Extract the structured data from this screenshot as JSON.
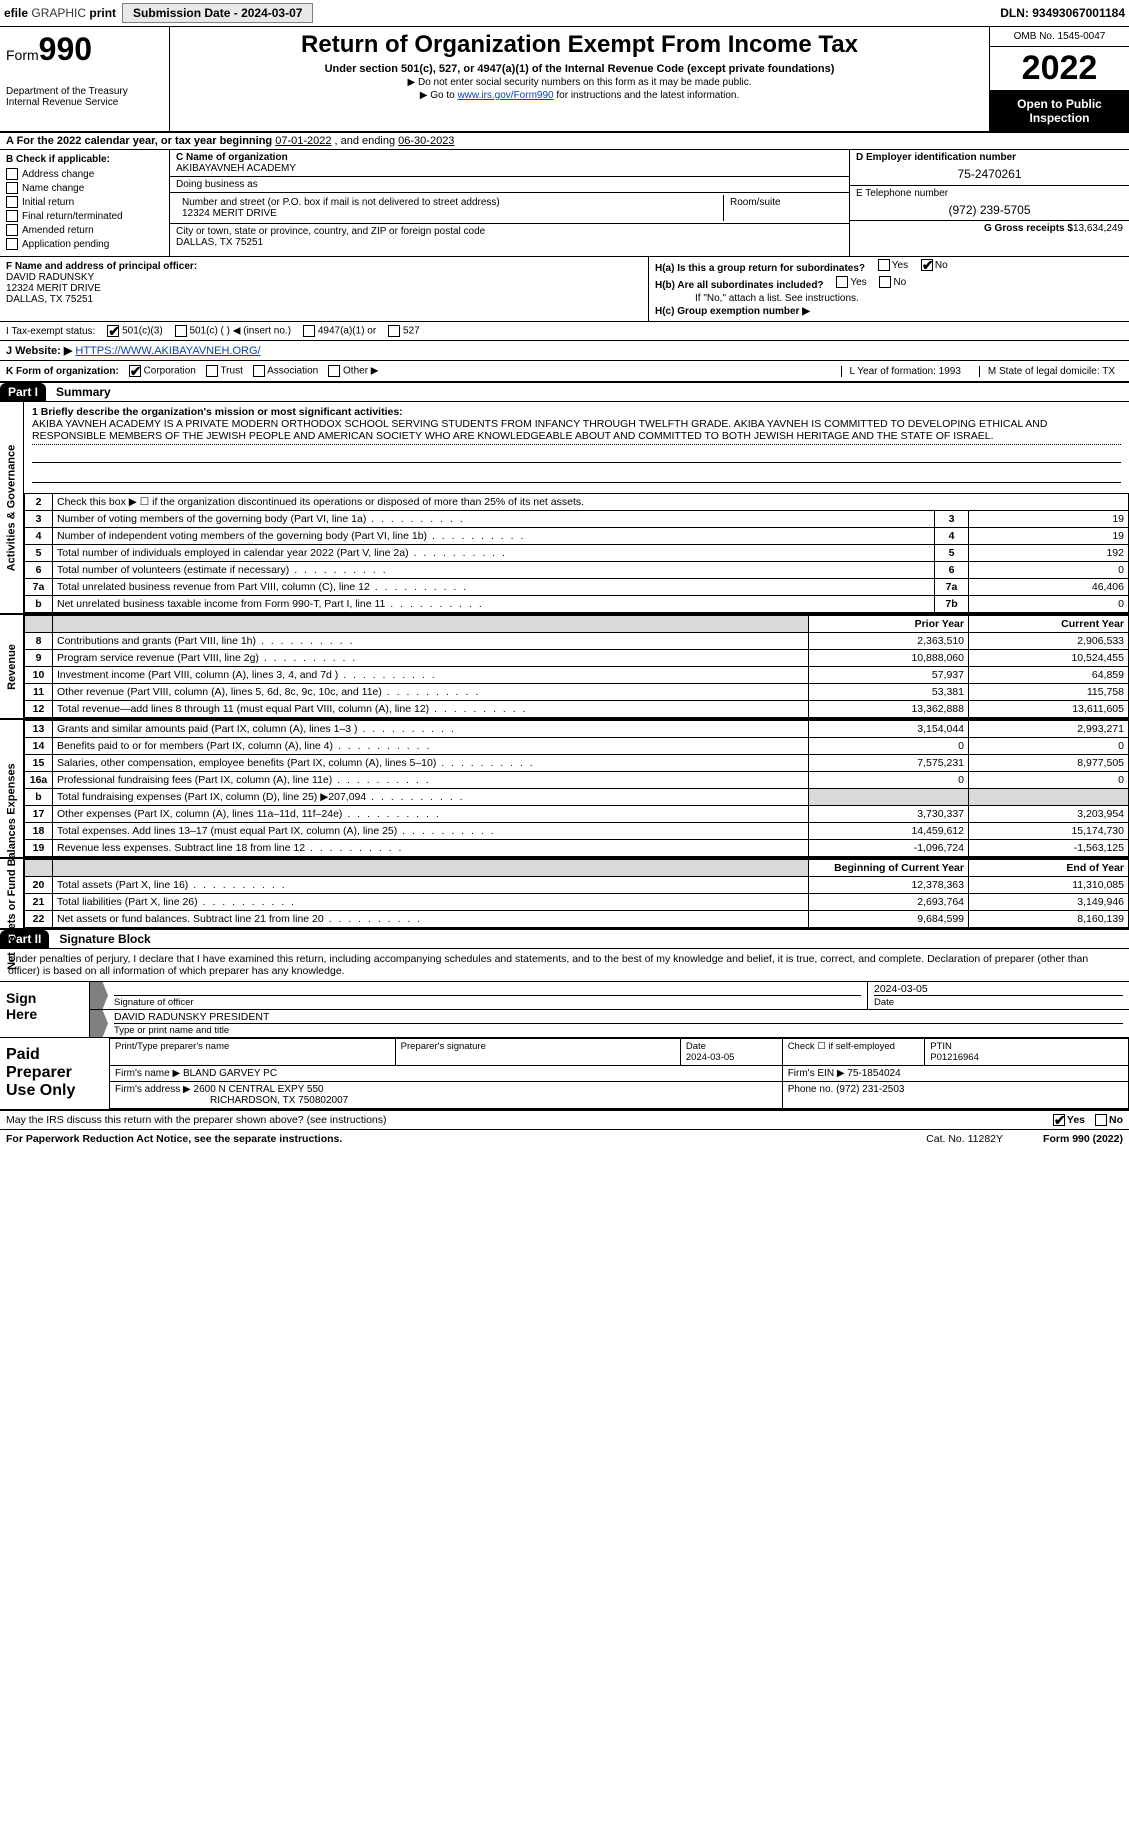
{
  "topbar": {
    "efile_prefix": "efile ",
    "efile_graphic": "GRAPHIC ",
    "efile_print": "print",
    "submission_btn": "Submission Date - 2024-03-07",
    "dln": "DLN: 93493067001184"
  },
  "header": {
    "form_word": "Form",
    "form_num": "990",
    "title": "Return of Organization Exempt From Income Tax",
    "subtitle": "Under section 501(c), 527, or 4947(a)(1) of the Internal Revenue Code (except private foundations)",
    "note1_pre": "▶ Do not enter social security numbers on this form as it may be made public.",
    "note2_pre": "▶ Go to ",
    "note2_link": "www.irs.gov/Form990",
    "note2_post": " for instructions and the latest information.",
    "dept": "Department of the Treasury",
    "irs": "Internal Revenue Service",
    "omb": "OMB No. 1545-0047",
    "year": "2022",
    "open": "Open to Public Inspection"
  },
  "rowA": {
    "prefix": "A For the 2022 calendar year, or tax year beginning ",
    "begin": "07-01-2022",
    "mid": "     , and ending ",
    "end": "06-30-2023"
  },
  "B": {
    "hdr": "B Check if applicable:",
    "addr": "Address change",
    "name": "Name change",
    "init": "Initial return",
    "final": "Final return/terminated",
    "amend": "Amended return",
    "app": "Application pending"
  },
  "C": {
    "name_lbl": "C Name of organization",
    "name": "AKIBAYAVNEH ACADEMY",
    "dba_lbl": "Doing business as",
    "dba": "",
    "street_lbl": "Number and street (or P.O. box if mail is not delivered to street address)",
    "room_lbl": "Room/suite",
    "street": "12324 MERIT DRIVE",
    "city_lbl": "City or town, state or province, country, and ZIP or foreign postal code",
    "city": "DALLAS, TX  75251"
  },
  "D": {
    "ein_lbl": "D Employer identification number",
    "ein": "75-2470261",
    "tel_lbl": "E Telephone number",
    "tel": "(972) 239-5705",
    "gross_lbl": "G Gross receipts $",
    "gross": "13,634,249"
  },
  "F": {
    "lbl": "F  Name and address of principal officer:",
    "name": "DAVID RADUNSKY",
    "street": "12324 MERIT DRIVE",
    "city": "DALLAS, TX  75251"
  },
  "H": {
    "a_lbl": "H(a)  Is this a group return for subordinates?",
    "b_lbl": "H(b)  Are all subordinates included?",
    "b_note": "If \"No,\" attach a list. See instructions.",
    "c_lbl": "H(c)  Group exemption number ▶",
    "yes": "Yes",
    "no": "No"
  },
  "I": {
    "lbl": "I   Tax-exempt status:",
    "c3": "501(c)(3)",
    "c_other": "501(c) (     ) ◀ (insert no.)",
    "a4947": "4947(a)(1) or",
    "s527": "527"
  },
  "J": {
    "lbl": "J   Website: ▶ ",
    "url": "HTTPS://WWW.AKIBAYAVNEH.ORG/"
  },
  "K": {
    "lbl": "K Form of organization:",
    "corp": "Corporation",
    "trust": "Trust",
    "assoc": "Association",
    "other": "Other ▶",
    "L": "L Year of formation: 1993",
    "M": "M State of legal domicile: TX"
  },
  "part1_label": "Part I",
  "part1_title": "Summary",
  "part2_label": "Part II",
  "part2_title": "Signature Block",
  "side": {
    "gov": "Activities & Governance",
    "rev": "Revenue",
    "exp": "Expenses",
    "net": "Net Assets or Fund Balances"
  },
  "mission": {
    "line1": "1  Briefly describe the organization's mission or most significant activities:",
    "text": "AKIBA YAVNEH ACADEMY IS A PRIVATE MODERN ORTHODOX SCHOOL SERVING STUDENTS FROM INFANCY THROUGH TWELFTH GRADE. AKIBA YAVNEH IS COMMITTED TO DEVELOPING ETHICAL AND RESPONSIBLE MEMBERS OF THE JEWISH PEOPLE AND AMERICAN SOCIETY WHO ARE KNOWLEDGEABLE ABOUT AND COMMITTED TO BOTH JEWISH HERITAGE AND THE STATE OF ISRAEL."
  },
  "gov_rows": [
    {
      "n": "2",
      "t": "Check this box ▶ ☐  if the organization discontinued its operations or disposed of more than 25% of its net assets.",
      "box": "",
      "v": ""
    },
    {
      "n": "3",
      "t": "Number of voting members of the governing body (Part VI, line 1a)",
      "box": "3",
      "v": "19"
    },
    {
      "n": "4",
      "t": "Number of independent voting members of the governing body (Part VI, line 1b)",
      "box": "4",
      "v": "19"
    },
    {
      "n": "5",
      "t": "Total number of individuals employed in calendar year 2022 (Part V, line 2a)",
      "box": "5",
      "v": "192"
    },
    {
      "n": "6",
      "t": "Total number of volunteers (estimate if necessary)",
      "box": "6",
      "v": "0"
    },
    {
      "n": "7a",
      "t": "Total unrelated business revenue from Part VIII, column (C), line 12",
      "box": "7a",
      "v": "46,406"
    },
    {
      "n": "b",
      "t": "Net unrelated business taxable income from Form 990-T, Part I, line 11",
      "box": "7b",
      "v": "0"
    }
  ],
  "col_prior": "Prior Year",
  "col_current": "Current Year",
  "col_boy": "Beginning of Current Year",
  "col_eoy": "End of Year",
  "rev_rows": [
    {
      "n": "8",
      "t": "Contributions and grants (Part VIII, line 1h)",
      "p": "2,363,510",
      "c": "2,906,533"
    },
    {
      "n": "9",
      "t": "Program service revenue (Part VIII, line 2g)",
      "p": "10,888,060",
      "c": "10,524,455"
    },
    {
      "n": "10",
      "t": "Investment income (Part VIII, column (A), lines 3, 4, and 7d )",
      "p": "57,937",
      "c": "64,859"
    },
    {
      "n": "11",
      "t": "Other revenue (Part VIII, column (A), lines 5, 6d, 8c, 9c, 10c, and 11e)",
      "p": "53,381",
      "c": "115,758"
    },
    {
      "n": "12",
      "t": "Total revenue—add lines 8 through 11 (must equal Part VIII, column (A), line 12)",
      "p": "13,362,888",
      "c": "13,611,605"
    }
  ],
  "exp_rows": [
    {
      "n": "13",
      "t": "Grants and similar amounts paid (Part IX, column (A), lines 1–3 )",
      "p": "3,154,044",
      "c": "2,993,271"
    },
    {
      "n": "14",
      "t": "Benefits paid to or for members (Part IX, column (A), line 4)",
      "p": "0",
      "c": "0"
    },
    {
      "n": "15",
      "t": "Salaries, other compensation, employee benefits (Part IX, column (A), lines 5–10)",
      "p": "7,575,231",
      "c": "8,977,505"
    },
    {
      "n": "16a",
      "t": "Professional fundraising fees (Part IX, column (A), line 11e)",
      "p": "0",
      "c": "0"
    },
    {
      "n": "b",
      "t": "Total fundraising expenses (Part IX, column (D), line 25) ▶207,094",
      "p": "",
      "c": "",
      "shade": true
    },
    {
      "n": "17",
      "t": "Other expenses (Part IX, column (A), lines 11a–11d, 11f–24e)",
      "p": "3,730,337",
      "c": "3,203,954"
    },
    {
      "n": "18",
      "t": "Total expenses. Add lines 13–17 (must equal Part IX, column (A), line 25)",
      "p": "14,459,612",
      "c": "15,174,730"
    },
    {
      "n": "19",
      "t": "Revenue less expenses. Subtract line 18 from line 12",
      "p": "-1,096,724",
      "c": "-1,563,125"
    }
  ],
  "net_rows": [
    {
      "n": "20",
      "t": "Total assets (Part X, line 16)",
      "p": "12,378,363",
      "c": "11,310,085"
    },
    {
      "n": "21",
      "t": "Total liabilities (Part X, line 26)",
      "p": "2,693,764",
      "c": "3,149,946"
    },
    {
      "n": "22",
      "t": "Net assets or fund balances. Subtract line 21 from line 20",
      "p": "9,684,599",
      "c": "8,160,139"
    }
  ],
  "sig_intro": "Under penalties of perjury, I declare that I have examined this return, including accompanying schedules and statements, and to the best of my knowledge and belief, it is true, correct, and complete. Declaration of preparer (other than officer) is based on all information of which preparer has any knowledge.",
  "sign": {
    "left1": "Sign",
    "left2": "Here",
    "sig_lbl": "Signature of officer",
    "date_lbl": "Date",
    "date": "2024-03-05",
    "name": "DAVID RADUNSKY  PRESIDENT",
    "name_lbl": "Type or print name and title"
  },
  "paid": {
    "left1": "Paid",
    "left2": "Preparer",
    "left3": "Use Only",
    "h_print": "Print/Type preparer's name",
    "h_sig": "Preparer's signature",
    "h_date": "Date",
    "date": "2024-03-05",
    "h_check": "Check ☐ if self-employed",
    "h_ptin": "PTIN",
    "ptin": "P01216964",
    "firm_lbl": "Firm's name     ▶ ",
    "firm": "BLAND GARVEY PC",
    "ein_lbl": "Firm's EIN ▶ ",
    "ein": "75-1854024",
    "addr_lbl": "Firm's address ▶ ",
    "addr1": "2600 N CENTRAL EXPY 550",
    "addr2": "RICHARDSON, TX  750802007",
    "phone_lbl": "Phone no. ",
    "phone": "(972) 231-2503"
  },
  "may": {
    "text": "May the IRS discuss this return with the preparer shown above? (see instructions)",
    "yes": "Yes",
    "no": "No"
  },
  "footer": {
    "pra": "For Paperwork Reduction Act Notice, see the separate instructions.",
    "cat": "Cat. No. 11282Y",
    "form": "Form 990 (2022)"
  }
}
